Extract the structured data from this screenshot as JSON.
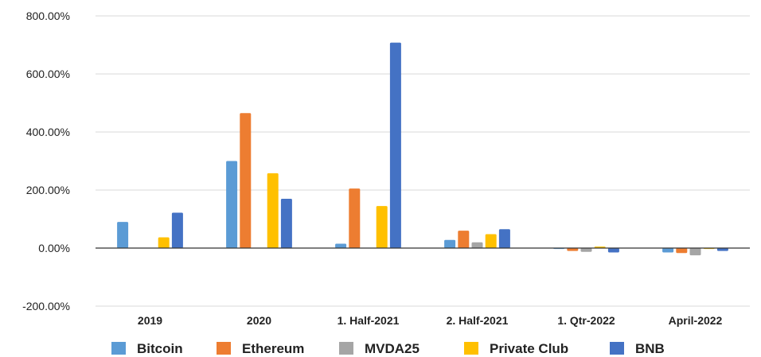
{
  "chart_data": {
    "type": "bar",
    "categories": [
      "2019",
      "2020",
      "1. Half-2021",
      "2. Half-2021",
      "1. Qtr-2022",
      "April-2022"
    ],
    "y_ticks": [
      "800.00%",
      "600.00%",
      "400.00%",
      "200.00%",
      "0.00%",
      "-200.00%"
    ],
    "y_tick_values": [
      800,
      600,
      400,
      200,
      0,
      -200
    ],
    "ylim": [
      -200,
      800
    ],
    "grid": true,
    "legend_position": "bottom",
    "series": [
      {
        "name": "Bitcoin",
        "color": "#5B9BD5",
        "values": [
          90,
          300,
          15,
          28,
          -3,
          -15
        ]
      },
      {
        "name": "Ethereum",
        "color": "#ED7D31",
        "values": [
          null,
          465,
          205,
          60,
          -10,
          -17
        ]
      },
      {
        "name": "MVDA25",
        "color": "#A5A5A5",
        "values": [
          null,
          null,
          null,
          20,
          -13,
          -25
        ]
      },
      {
        "name": "Private Club",
        "color": "#FFC000",
        "values": [
          37,
          258,
          145,
          48,
          5,
          -3
        ]
      },
      {
        "name": "BNB",
        "color": "#4472C4",
        "values": [
          122,
          170,
          708,
          65,
          -15,
          -10
        ]
      }
    ]
  }
}
